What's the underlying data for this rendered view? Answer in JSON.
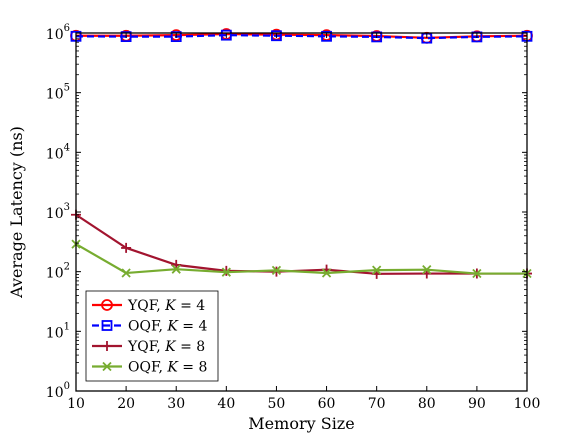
{
  "chart_data": {
    "type": "line",
    "xlabel": "Memory Size",
    "ylabel": "Average Latency (ns)",
    "x": [
      10,
      20,
      30,
      40,
      50,
      60,
      70,
      80,
      90,
      100
    ],
    "xlim": [
      10,
      100
    ],
    "ylim": [
      1,
      1000000
    ],
    "yscale": "log",
    "xticks": [
      "10",
      "20",
      "30",
      "40",
      "50",
      "60",
      "70",
      "80",
      "90",
      "100"
    ],
    "yticks": [
      {
        "base": "10",
        "exp": "0",
        "value": 1
      },
      {
        "base": "10",
        "exp": "1",
        "value": 10
      },
      {
        "base": "10",
        "exp": "2",
        "value": 100
      },
      {
        "base": "10",
        "exp": "3",
        "value": 1000
      },
      {
        "base": "10",
        "exp": "4",
        "value": 10000
      },
      {
        "base": "10",
        "exp": "5",
        "value": 100000
      },
      {
        "base": "10",
        "exp": "6",
        "value": 1000000
      }
    ],
    "legend_position": "bottom-left",
    "series": [
      {
        "name": "YQF, K = 4",
        "name_prefix": "YQF, ",
        "name_var": "K",
        "name_suffix": " = 4",
        "color": "#ff0000",
        "linestyle": "solid",
        "marker": "circle",
        "values": [
          900000,
          900000,
          920000,
          960000,
          940000,
          920000,
          890000,
          830000,
          880000,
          900000
        ]
      },
      {
        "name": "OQF, K = 4",
        "name_prefix": "OQF, ",
        "name_var": "K",
        "name_suffix": " = 4",
        "color": "#0000ff",
        "linestyle": "dashed",
        "marker": "square",
        "values": [
          880000,
          870000,
          870000,
          920000,
          900000,
          880000,
          860000,
          820000,
          860000,
          880000
        ]
      },
      {
        "name": "YQF, K = 8",
        "name_prefix": "YQF, ",
        "name_var": "K",
        "name_suffix": " = 8",
        "color": "#a2142f",
        "linestyle": "solid",
        "marker": "plus",
        "values": [
          900,
          250,
          130,
          103,
          100,
          108,
          92,
          93,
          93,
          93
        ]
      },
      {
        "name": "OQF, K = 8",
        "name_prefix": "OQF, ",
        "name_var": "K",
        "name_suffix": " = 8",
        "color": "#77ac30",
        "linestyle": "solid",
        "marker": "x",
        "values": [
          290,
          95,
          110,
          98,
          105,
          95,
          106,
          108,
          93,
          93
        ]
      }
    ]
  }
}
